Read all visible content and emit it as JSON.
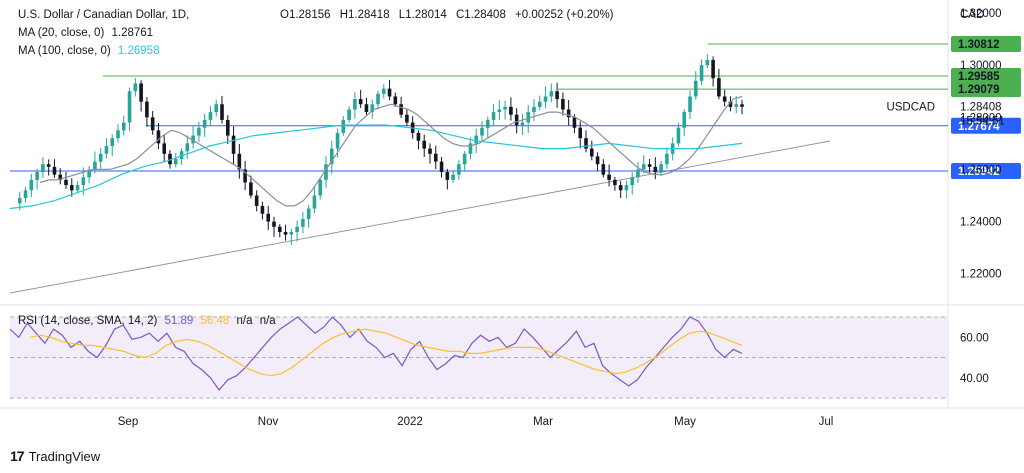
{
  "header": {
    "symbol": "U.S. Dollar / Canadian Dollar, 1D,",
    "ohlc": {
      "o": "O1.28156",
      "h": "H1.28418",
      "l": "L1.28014",
      "c": "C1.28408",
      "chg": "+0.00252 (+0.20%)"
    },
    "ma20": {
      "label": "MA (20, close, 0)",
      "value": "1.28761"
    },
    "ma100": {
      "label": "MA (100, close, 0)",
      "value": "1.26958"
    },
    "rsi": {
      "label": "RSI (14, close, SMA, 14, 2)",
      "value": "51.89",
      "sma": "56.48",
      "na1": "n/a",
      "na2": "n/a"
    }
  },
  "colors": {
    "up": "#26a69a",
    "down": "#131722",
    "ma20": "#8a8f99",
    "ma100": "#26c6da",
    "green_line": "#4caf50",
    "blue_line": "#2962ff",
    "trend": "#9598a1",
    "rsi": "#7e57c2",
    "rsi_ma": "#fbc02d",
    "rsi_bg": "#ede7f6"
  },
  "chart_data": {
    "type": "line",
    "title": "U.S. Dollar / Canadian Dollar, 1D",
    "currency": "CAD",
    "price_axis": {
      "ticks": [
        1.32,
        1.3,
        1.28,
        1.26,
        1.24,
        1.22
      ],
      "tick_labels": [
        "1.32000",
        "1.30000",
        "1.28000",
        "1.26000",
        "1.24000",
        "1.22000"
      ],
      "range": [
        1.208,
        1.325
      ]
    },
    "time_axis": {
      "labels": [
        "Sep",
        "Nov",
        "2022",
        "Mar",
        "May",
        "Jul"
      ]
    },
    "levels": [
      {
        "label": "1.30812",
        "value": 1.30812,
        "kind": "green"
      },
      {
        "label": "1.29585",
        "value": 1.29585,
        "kind": "green"
      },
      {
        "label": "1.29079",
        "value": 1.29079,
        "kind": "green"
      },
      {
        "label": "1.27674",
        "value": 1.27674,
        "kind": "blue"
      },
      {
        "label": "1.25942",
        "value": 1.25942,
        "kind": "blue"
      }
    ],
    "last_price": {
      "symbol": "USDCAD",
      "value": "1.28408",
      "countdown": "15:54:51"
    },
    "series": [
      {
        "name": "USDCAD",
        "values": [
          1.247,
          1.249,
          1.252,
          1.256,
          1.259,
          1.262,
          1.261,
          1.258,
          1.256,
          1.254,
          1.252,
          1.254,
          1.257,
          1.26,
          1.263,
          1.266,
          1.269,
          1.272,
          1.275,
          1.278,
          1.29,
          1.293,
          1.286,
          1.28,
          1.275,
          1.27,
          1.266,
          1.262,
          1.264,
          1.267,
          1.27,
          1.273,
          1.276,
          1.279,
          1.282,
          1.285,
          1.279,
          1.273,
          1.266,
          1.26,
          1.255,
          1.25,
          1.246,
          1.243,
          1.24,
          1.238,
          1.236,
          1.235,
          1.236,
          1.238,
          1.241,
          1.245,
          1.25,
          1.256,
          1.262,
          1.268,
          1.274,
          1.279,
          1.283,
          1.287,
          1.285,
          1.282,
          1.285,
          1.289,
          1.291,
          1.288,
          1.285,
          1.281,
          1.278,
          1.274,
          1.271,
          1.268,
          1.266,
          1.263,
          1.259,
          1.256,
          1.258,
          1.262,
          1.266,
          1.27,
          1.273,
          1.276,
          1.279,
          1.282,
          1.283,
          1.284,
          1.281,
          1.277,
          1.278,
          1.282,
          1.284,
          1.286,
          1.288,
          1.29,
          1.287,
          1.283,
          1.28,
          1.276,
          1.272,
          1.268,
          1.265,
          1.262,
          1.258,
          1.256,
          1.254,
          1.252,
          1.254,
          1.257,
          1.26,
          1.262,
          1.261,
          1.259,
          1.262,
          1.266,
          1.27,
          1.276,
          1.282,
          1.288,
          1.294,
          1.3,
          1.302,
          1.295,
          1.288,
          1.286,
          1.284,
          1.285,
          1.284
        ]
      },
      {
        "name": "MA (20, close, 0)",
        "values": [
          1.255,
          1.256,
          1.256,
          1.257,
          1.258,
          1.259,
          1.26,
          1.26,
          1.26,
          1.261,
          1.262,
          1.264,
          1.267,
          1.27,
          1.273,
          1.275,
          1.274,
          1.272,
          1.27,
          1.268,
          1.266,
          1.264,
          1.262,
          1.26,
          1.257,
          1.254,
          1.251,
          1.248,
          1.246,
          1.246,
          1.248,
          1.252,
          1.257,
          1.262,
          1.267,
          1.272,
          1.277,
          1.28,
          1.283,
          1.284,
          1.285,
          1.284,
          1.283,
          1.281,
          1.278,
          1.275,
          1.272,
          1.27,
          1.269,
          1.269,
          1.27,
          1.272,
          1.274,
          1.276,
          1.278,
          1.279,
          1.28,
          1.281,
          1.282,
          1.282,
          1.281,
          1.28,
          1.278,
          1.276,
          1.273,
          1.27,
          1.267,
          1.264,
          1.261,
          1.259,
          1.258,
          1.258,
          1.259,
          1.261,
          1.264,
          1.268,
          1.273,
          1.278,
          1.283,
          1.287,
          1.288
        ]
      },
      {
        "name": "MA (100, close, 0)",
        "values": [
          1.245,
          1.246,
          1.248,
          1.251,
          1.254,
          1.258,
          1.261,
          1.263,
          1.266,
          1.269,
          1.271,
          1.273,
          1.274,
          1.275,
          1.276,
          1.277,
          1.277,
          1.277,
          1.276,
          1.275,
          1.273,
          1.271,
          1.27,
          1.269,
          1.268,
          1.268,
          1.269,
          1.27,
          1.269,
          1.268,
          1.268,
          1.268,
          1.269,
          1.27
        ]
      },
      {
        "name": "RSI (14, close, SMA, 14, 2)",
        "values": [
          64,
          60,
          67,
          62,
          57,
          64,
          61,
          55,
          58,
          53,
          50,
          56,
          64,
          66,
          59,
          60,
          62,
          58,
          62,
          55,
          53,
          47,
          44,
          40,
          34,
          39,
          41,
          45,
          50,
          55,
          60,
          64,
          67,
          70,
          66,
          62,
          65,
          70,
          66,
          60,
          64,
          58,
          55,
          50,
          52,
          46,
          54,
          58,
          50,
          44,
          47,
          51,
          50,
          57,
          61,
          58,
          60,
          55,
          57,
          64,
          60,
          55,
          50,
          54,
          58,
          63,
          55,
          57,
          46,
          42,
          39,
          36,
          39,
          45,
          50,
          55,
          60,
          64,
          70,
          68,
          62,
          54,
          50,
          54,
          52
        ]
      },
      {
        "name": "RSI SMA",
        "values": [
          60,
          61,
          60,
          58,
          57,
          56,
          56,
          55,
          54,
          53,
          51,
          50,
          52,
          56,
          58,
          59,
          58,
          56,
          53,
          50,
          47,
          44,
          42,
          41,
          42,
          45,
          49,
          53,
          57,
          60,
          62,
          63,
          64,
          63,
          62,
          60,
          58,
          56,
          55,
          54,
          53,
          53,
          52,
          52,
          53,
          54,
          55,
          55,
          55,
          54,
          52,
          50,
          48,
          46,
          44,
          43,
          42,
          43,
          45,
          48,
          51,
          55,
          59,
          62,
          63,
          62,
          60,
          58,
          56
        ]
      }
    ],
    "rsi_axis": {
      "tick_labels": [
        "60.00",
        "40.00"
      ],
      "band": [
        30,
        70
      ]
    }
  },
  "footer": {
    "brand": "TradingView",
    "logo": "17"
  }
}
